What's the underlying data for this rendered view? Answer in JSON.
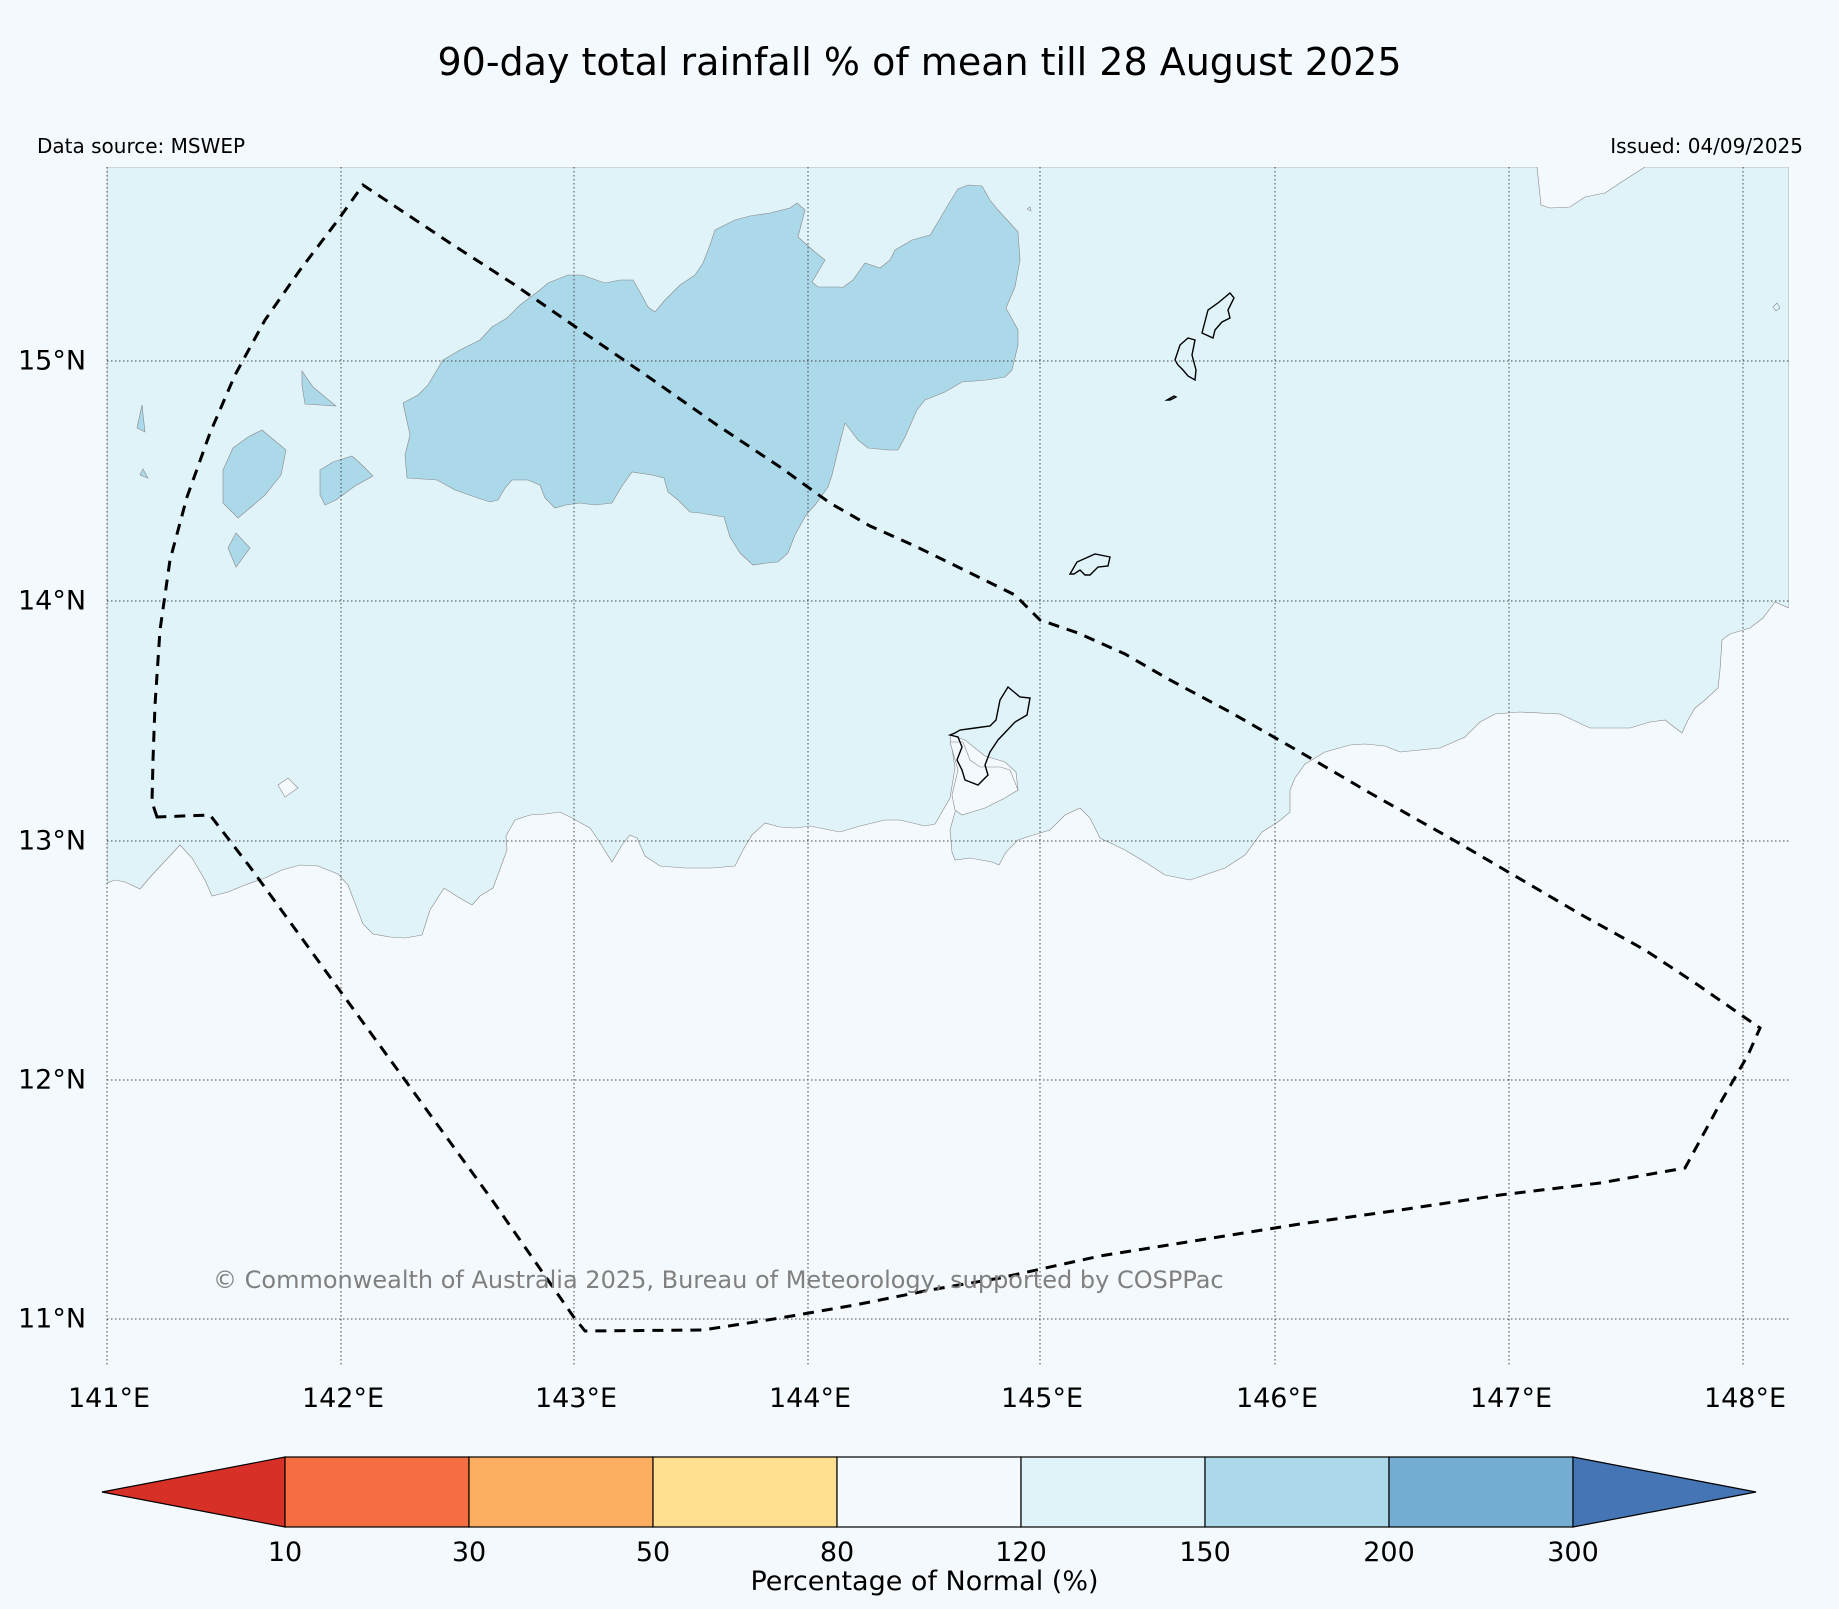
{
  "title": "90-day total rainfall % of mean till 28 August 2025",
  "data_source": "Data source: MSWEP",
  "issued": "Issued: 04/09/2025",
  "copyright": "© Commonwealth of Australia 2025, Bureau of Meteorology, supported by COSPPac",
  "map": {
    "lat_labels": [
      "15°N",
      "14°N",
      "13°N",
      "12°N",
      "11°N"
    ],
    "lon_labels": [
      "141°E",
      "142°E",
      "143°E",
      "144°E",
      "145°E",
      "146°E",
      "147°E",
      "148°E"
    ],
    "extent": {
      "lon": [
        141.0,
        148.2
      ],
      "lat": [
        10.9,
        15.82
      ]
    },
    "gridlines": true,
    "region_outline": "dashed black polygon"
  },
  "colorbar": {
    "label": "Percentage of Normal (%)",
    "ticks": [
      "10",
      "30",
      "50",
      "80",
      "120",
      "150",
      "200",
      "300"
    ],
    "colors": {
      "below_10": "#d73027",
      "10_30": "#f46d43",
      "30_50": "#fdae61",
      "50_80": "#fee090",
      "80_120": "#f3f9fc",
      "120_150": "#e0f3f8",
      "150_200": "#abd9e9",
      "200_300": "#74add1",
      "above_300": "#4575b4"
    }
  }
}
